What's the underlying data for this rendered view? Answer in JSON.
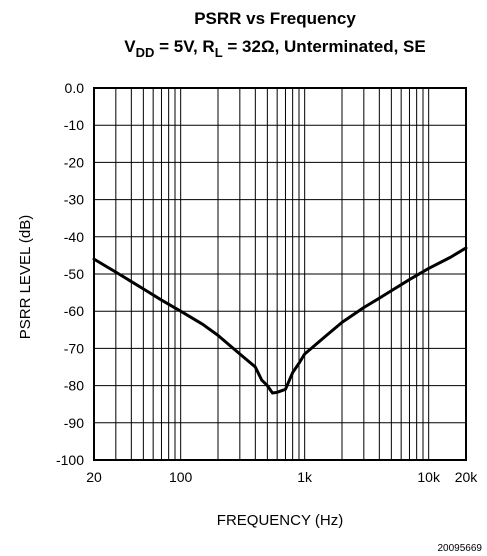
{
  "chart_data": {
    "type": "line",
    "title": "PSRR vs Frequency",
    "subtitle_parts": {
      "a": "V",
      "b": "DD",
      "c": " = 5V, R",
      "d": "L",
      "e": " = 32Ω, Unterminated, SE"
    },
    "xlabel": "FREQUENCY (Hz)",
    "ylabel": "PSRR LEVEL (dB)",
    "x_scale": "log",
    "xlim": [
      20,
      20000
    ],
    "ylim": [
      -100,
      0
    ],
    "grid": true,
    "x_ticks": [
      {
        "value": 20,
        "label": "20"
      },
      {
        "value": 100,
        "label": "100"
      },
      {
        "value": 1000,
        "label": "1k"
      },
      {
        "value": 10000,
        "label": "10k"
      },
      {
        "value": 20000,
        "label": "20k"
      }
    ],
    "y_ticks": [
      {
        "value": 0,
        "label": "0.0"
      },
      {
        "value": -10,
        "label": "-10"
      },
      {
        "value": -20,
        "label": "-20"
      },
      {
        "value": -30,
        "label": "-30"
      },
      {
        "value": -40,
        "label": "-40"
      },
      {
        "value": -50,
        "label": "-50"
      },
      {
        "value": -60,
        "label": "-60"
      },
      {
        "value": -70,
        "label": "-70"
      },
      {
        "value": -80,
        "label": "-80"
      },
      {
        "value": -90,
        "label": "-90"
      },
      {
        "value": -100,
        "label": "-100"
      }
    ],
    "x_gridlines": [
      20,
      30,
      40,
      50,
      60,
      70,
      80,
      90,
      100,
      200,
      300,
      400,
      500,
      600,
      700,
      800,
      900,
      1000,
      2000,
      3000,
      4000,
      5000,
      6000,
      7000,
      8000,
      9000,
      10000,
      20000
    ],
    "series": [
      {
        "color": "#000000",
        "points": [
          [
            20,
            -46.0
          ],
          [
            30,
            -49.5
          ],
          [
            50,
            -54.0
          ],
          [
            70,
            -57.0
          ],
          [
            100,
            -60.0
          ],
          [
            150,
            -63.5
          ],
          [
            200,
            -66.5
          ],
          [
            300,
            -71.5
          ],
          [
            400,
            -75.0
          ],
          [
            450,
            -78.5
          ],
          [
            500,
            -80.0
          ],
          [
            550,
            -82.0
          ],
          [
            600,
            -81.8
          ],
          [
            700,
            -81.0
          ],
          [
            800,
            -76.5
          ],
          [
            900,
            -74.0
          ],
          [
            1000,
            -71.5
          ],
          [
            1500,
            -66.5
          ],
          [
            2000,
            -63.0
          ],
          [
            3000,
            -59.0
          ],
          [
            4000,
            -56.5
          ],
          [
            5000,
            -54.5
          ],
          [
            7000,
            -51.5
          ],
          [
            10000,
            -48.5
          ],
          [
            15000,
            -45.5
          ],
          [
            20000,
            -43.0
          ]
        ]
      }
    ],
    "caption": "20095669"
  }
}
